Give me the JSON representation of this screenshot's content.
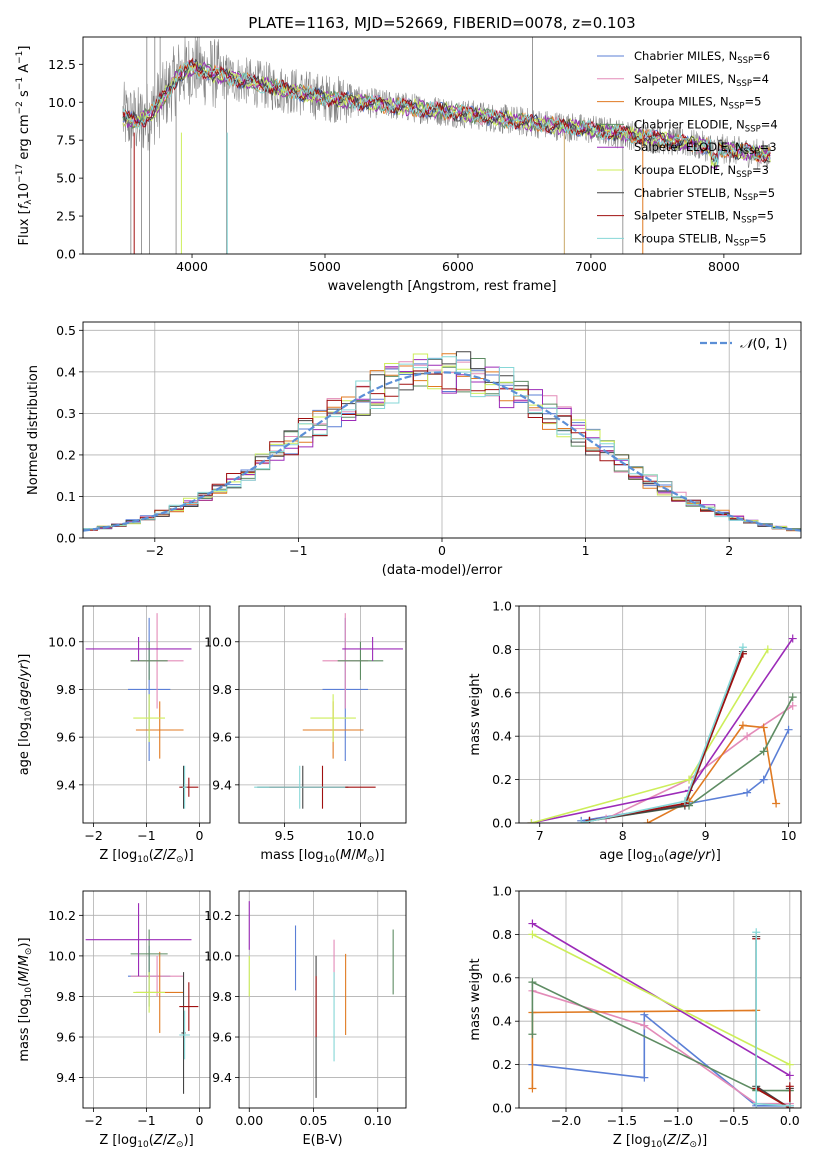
{
  "figure_title": "PLATE=1163, MJD=52669, FIBERID=0078, z=0.103",
  "palette": {
    "Chabrier MILES": "#5b7fd6",
    "Salpeter MILES": "#e38bb8",
    "Kroupa MILES": "#e07a22",
    "Chabrier ELODIE": "#5e8c63",
    "Salpeter ELODIE": "#9c2bb8",
    "Kroupa ELODIE": "#cdee5a",
    "Chabrier STELIB": "#444444",
    "Salpeter STELIB": "#a01010",
    "Kroupa STELIB": "#86d7d7",
    "data": "#808080",
    "gaussian": "#5b8fd6"
  },
  "chart_data": [
    {
      "id": "spectrum",
      "type": "line",
      "title": "PLATE=1163, MJD=52669, FIBERID=0078, z=0.103",
      "xlabel": "wavelength [Angstrom, rest frame]",
      "ylabel": "Flux [f_λ 10^-17 erg cm^-2 s^-1 A^-1]",
      "xlim": [
        3180,
        8580
      ],
      "ylim": [
        0,
        14.3
      ],
      "xticks": [
        4000,
        5000,
        6000,
        7000,
        8000
      ],
      "yticks": [
        0.0,
        2.5,
        5.0,
        7.5,
        10.0,
        12.5
      ],
      "grid": false,
      "legend_position": "top-right",
      "legend": [
        {
          "label": "Chabrier MILES, N_SSP=6",
          "color": "#5b7fd6"
        },
        {
          "label": "Salpeter MILES, N_SSP=4",
          "color": "#e38bb8"
        },
        {
          "label": "Kroupa MILES, N_SSP=5",
          "color": "#e07a22"
        },
        {
          "label": "Chabrier ELODIE, N_SSP=4",
          "color": "#5e8c63"
        },
        {
          "label": "Salpeter ELODIE, N_SSP=3",
          "color": "#9c2bb8"
        },
        {
          "label": "Kroupa ELODIE, N_SSP=3",
          "color": "#cdee5a"
        },
        {
          "label": "Chabrier STELIB, N_SSP=5",
          "color": "#444444"
        },
        {
          "label": "Salpeter STELIB, N_SSP=5",
          "color": "#a01010"
        },
        {
          "label": "Kroupa STELIB, N_SSP=5",
          "color": "#86d7d7"
        }
      ],
      "continuum": {
        "x": [
          3480,
          3600,
          3700,
          3800,
          3900,
          4000,
          4200,
          4500,
          5000,
          5500,
          6000,
          6500,
          7000,
          7500,
          8000,
          8350
        ],
        "y": [
          9.0,
          8.7,
          9.3,
          10.5,
          11.8,
          12.3,
          11.8,
          11.2,
          10.3,
          9.8,
          9.3,
          8.7,
          8.2,
          7.6,
          6.9,
          6.5
        ]
      }
    },
    {
      "id": "residuals",
      "type": "histogram",
      "xlabel": "(data-model)/error",
      "ylabel": "Normed distribution",
      "xlim": [
        -2.5,
        2.5
      ],
      "ylim": [
        0,
        0.52
      ],
      "xticks": [
        -2,
        -1,
        0,
        1,
        2
      ],
      "yticks": [
        0.0,
        0.1,
        0.2,
        0.3,
        0.4,
        0.5
      ],
      "grid": true,
      "legend_position": "top-right",
      "gaussian_label": "N(0,1)",
      "bin_width": 0.1
    },
    {
      "id": "age_vs_Z",
      "type": "errorbar",
      "xlabel": "Z [log10(Z/Z⊙)]",
      "ylabel": "age [log10(age/yr)]",
      "xlim": [
        -2.2,
        0.2
      ],
      "ylim": [
        9.24,
        10.15
      ],
      "xticks": [
        -2,
        -1,
        0
      ],
      "yticks": [
        9.4,
        9.6,
        9.8,
        10.0
      ],
      "grid": true,
      "points": [
        {
          "model": "Chabrier MILES",
          "x": -0.95,
          "xerr": 0.4,
          "y": 9.8,
          "yerr": 0.3
        },
        {
          "model": "Salpeter MILES",
          "x": -0.8,
          "xerr": 0.5,
          "y": 9.92,
          "yerr": 0.2
        },
        {
          "model": "Kroupa MILES",
          "x": -0.75,
          "xerr": 0.45,
          "y": 9.63,
          "yerr": 0.12
        },
        {
          "model": "Chabrier ELODIE",
          "x": -0.95,
          "xerr": 0.35,
          "y": 9.92,
          "yerr": 0.08
        },
        {
          "model": "Salpeter ELODIE",
          "x": -1.15,
          "xerr": 1.0,
          "y": 9.97,
          "yerr": 0.05
        },
        {
          "model": "Kroupa ELODIE",
          "x": -0.95,
          "xerr": 0.3,
          "y": 9.68,
          "yerr": 0.1
        },
        {
          "model": "Chabrier STELIB",
          "x": -0.3,
          "xerr": 0.04,
          "y": 9.39,
          "yerr": 0.09
        },
        {
          "model": "Salpeter STELIB",
          "x": -0.2,
          "xerr": 0.18,
          "y": 9.39,
          "yerr": 0.04
        },
        {
          "model": "Kroupa STELIB",
          "x": -0.28,
          "xerr": 0.04,
          "y": 9.39,
          "yerr": 0.09
        }
      ]
    },
    {
      "id": "age_vs_mass",
      "type": "errorbar",
      "xlabel": "mass [log10(M/M⊙)]",
      "ylabel": "",
      "xlim": [
        9.2,
        10.3
      ],
      "ylim": [
        9.24,
        10.15
      ],
      "xticks": [
        9.5,
        10.0
      ],
      "yticks": [
        9.4,
        9.6,
        9.8,
        10.0
      ],
      "grid": true,
      "points": [
        {
          "model": "Chabrier MILES",
          "x": 9.9,
          "xerr": 0.15,
          "y": 9.8,
          "yerr": 0.3
        },
        {
          "model": "Salpeter MILES",
          "x": 9.9,
          "xerr": 0.15,
          "y": 9.92,
          "yerr": 0.2
        },
        {
          "model": "Kroupa MILES",
          "x": 9.82,
          "xerr": 0.2,
          "y": 9.63,
          "yerr": 0.12
        },
        {
          "model": "Chabrier ELODIE",
          "x": 10.0,
          "xerr": 0.15,
          "y": 9.92,
          "yerr": 0.08
        },
        {
          "model": "Salpeter ELODIE",
          "x": 10.08,
          "xerr": 0.2,
          "y": 9.97,
          "yerr": 0.05
        },
        {
          "model": "Kroupa ELODIE",
          "x": 9.82,
          "xerr": 0.15,
          "y": 9.68,
          "yerr": 0.1
        },
        {
          "model": "Chabrier STELIB",
          "x": 9.62,
          "xerr": 0.3,
          "y": 9.39,
          "yerr": 0.09
        },
        {
          "model": "Salpeter STELIB",
          "x": 9.75,
          "xerr": 0.35,
          "y": 9.39,
          "yerr": 0.09
        },
        {
          "model": "Kroupa STELIB",
          "x": 9.6,
          "xerr": 0.3,
          "y": 9.39,
          "yerr": 0.09
        }
      ]
    },
    {
      "id": "massweight_vs_age",
      "type": "line",
      "xlabel": "age [log10(age/yr)]",
      "ylabel": "mass weight",
      "xlim": [
        6.75,
        10.15
      ],
      "ylim": [
        0,
        1.0
      ],
      "xticks": [
        7,
        8,
        9,
        10
      ],
      "yticks": [
        0.0,
        0.2,
        0.4,
        0.6,
        0.8,
        1.0
      ],
      "grid": true,
      "series": [
        {
          "model": "Chabrier MILES",
          "x": [
            7.5,
            8.8,
            9.5,
            9.7,
            10.0
          ],
          "y": [
            0.01,
            0.09,
            0.14,
            0.2,
            0.43
          ]
        },
        {
          "model": "Salpeter MILES",
          "x": [
            7.8,
            8.8,
            9.5,
            10.05
          ],
          "y": [
            0.02,
            0.2,
            0.4,
            0.54
          ]
        },
        {
          "model": "Kroupa MILES",
          "x": [
            8.3,
            8.8,
            9.45,
            9.7,
            9.85
          ],
          "y": [
            0.0,
            0.1,
            0.45,
            0.44,
            0.09
          ]
        },
        {
          "model": "Chabrier ELODIE",
          "x": [
            7.6,
            8.8,
            9.7,
            10.05
          ],
          "y": [
            0.01,
            0.08,
            0.33,
            0.58
          ]
        },
        {
          "model": "Salpeter ELODIE",
          "x": [
            6.9,
            8.8,
            10.05
          ],
          "y": [
            0.0,
            0.15,
            0.85
          ]
        },
        {
          "model": "Kroupa ELODIE",
          "x": [
            6.9,
            8.8,
            9.75
          ],
          "y": [
            0.0,
            0.2,
            0.8
          ]
        },
        {
          "model": "Chabrier STELIB",
          "x": [
            7.6,
            8.75,
            9.45
          ],
          "y": [
            0.01,
            0.08,
            0.79
          ]
        },
        {
          "model": "Salpeter STELIB",
          "x": [
            7.6,
            8.75,
            9.45
          ],
          "y": [
            0.01,
            0.09,
            0.78
          ]
        },
        {
          "model": "Kroupa STELIB",
          "x": [
            7.5,
            8.75,
            9.45
          ],
          "y": [
            0.0,
            0.1,
            0.81
          ]
        }
      ]
    },
    {
      "id": "mass_vs_Z",
      "type": "errorbar",
      "xlabel": "Z [log10(Z/Z⊙)]",
      "ylabel": "mass [log10(M/M⊙)]",
      "xlim": [
        -2.2,
        0.2
      ],
      "ylim": [
        9.25,
        10.32
      ],
      "xticks": [
        -2,
        -1,
        0
      ],
      "yticks": [
        9.4,
        9.6,
        9.8,
        10.0,
        10.2
      ],
      "grid": true,
      "points": [
        {
          "model": "Chabrier MILES",
          "x": -0.95,
          "xerr": 0.4,
          "y": 9.9,
          "yerr": 0.15
        },
        {
          "model": "Salpeter MILES",
          "x": -0.8,
          "xerr": 0.5,
          "y": 9.9,
          "yerr": 0.1
        },
        {
          "model": "Kroupa MILES",
          "x": -0.75,
          "xerr": 0.45,
          "y": 9.82,
          "yerr": 0.2
        },
        {
          "model": "Chabrier ELODIE",
          "x": -0.95,
          "xerr": 0.35,
          "y": 10.01,
          "yerr": 0.12
        },
        {
          "model": "Salpeter ELODIE",
          "x": -1.15,
          "xerr": 1.0,
          "y": 10.08,
          "yerr": 0.18
        },
        {
          "model": "Kroupa ELODIE",
          "x": -0.95,
          "xerr": 0.3,
          "y": 9.82,
          "yerr": 0.1
        },
        {
          "model": "Chabrier STELIB",
          "x": -0.3,
          "xerr": 0.04,
          "y": 9.62,
          "yerr": 0.3
        },
        {
          "model": "Salpeter STELIB",
          "x": -0.2,
          "xerr": 0.18,
          "y": 9.75,
          "yerr": 0.12
        },
        {
          "model": "Kroupa STELIB",
          "x": -0.28,
          "xerr": 0.1,
          "y": 9.61,
          "yerr": 0.12
        }
      ]
    },
    {
      "id": "mass_vs_ebv",
      "type": "errorbar",
      "xlabel": "E(B-V)",
      "ylabel": "",
      "xlim": [
        -0.008,
        0.122
      ],
      "ylim": [
        9.25,
        10.32
      ],
      "xticks": [
        0.0,
        0.05,
        0.1
      ],
      "xticklabels": [
        "0.00",
        "0.05",
        "0.10"
      ],
      "yticks": [
        9.4,
        9.6,
        9.8,
        10.0,
        10.2
      ],
      "grid": true,
      "points": [
        {
          "model": "Chabrier MILES",
          "x": 0.036,
          "xerr": 0,
          "y": 9.99,
          "yerr": 0.16
        },
        {
          "model": "Salpeter MILES",
          "x": 0.066,
          "xerr": 0,
          "y": 9.94,
          "yerr": 0.14
        },
        {
          "model": "Kroupa MILES",
          "x": 0.075,
          "xerr": 0,
          "y": 9.81,
          "yerr": 0.2
        },
        {
          "model": "Chabrier ELODIE",
          "x": 0.112,
          "xerr": 0,
          "y": 9.97,
          "yerr": 0.16
        },
        {
          "model": "Salpeter ELODIE",
          "x": 0.0,
          "xerr": 0,
          "y": 10.15,
          "yerr": 0.12
        },
        {
          "model": "Kroupa ELODIE",
          "x": 0.0,
          "xerr": 0,
          "y": 9.9,
          "yerr": 0.1
        },
        {
          "model": "Chabrier STELIB",
          "x": 0.052,
          "xerr": 0,
          "y": 9.65,
          "yerr": 0.35
        },
        {
          "model": "Salpeter STELIB",
          "x": 0.052,
          "xerr": 0,
          "y": 9.75,
          "yerr": 0.15
        },
        {
          "model": "Kroupa STELIB",
          "x": 0.066,
          "xerr": 0,
          "y": 9.7,
          "yerr": 0.22
        }
      ]
    },
    {
      "id": "massweight_vs_Z",
      "type": "line",
      "xlabel": "Z [log10(Z/Z⊙)]",
      "ylabel": "mass weight",
      "xlim": [
        -2.42,
        0.1
      ],
      "ylim": [
        0,
        1.0
      ],
      "xticks": [
        -2.0,
        -1.5,
        -1.0,
        -0.5,
        0.0
      ],
      "yticks": [
        0.0,
        0.2,
        0.4,
        0.6,
        0.8,
        1.0
      ],
      "grid": true,
      "series": [
        {
          "model": "Chabrier MILES",
          "x": [
            -2.3,
            -1.3,
            -1.3,
            -0.3,
            0.0
          ],
          "y": [
            0.2,
            0.14,
            0.43,
            0.01,
            0.01
          ]
        },
        {
          "model": "Salpeter MILES",
          "x": [
            -2.3,
            -1.3,
            -0.3,
            0.0
          ],
          "y": [
            0.54,
            0.38,
            0.02,
            0.02
          ]
        },
        {
          "model": "Kroupa MILES",
          "x": [
            -2.3,
            -2.3,
            -0.3,
            -0.3,
            0.0
          ],
          "y": [
            0.09,
            0.44,
            0.45,
            0.09,
            0.0
          ]
        },
        {
          "model": "Chabrier ELODIE",
          "x": [
            -2.3,
            -2.3,
            -0.3,
            0.0
          ],
          "y": [
            0.34,
            0.58,
            0.08,
            0.08
          ]
        },
        {
          "model": "Salpeter ELODIE",
          "x": [
            -2.3,
            0.0
          ],
          "y": [
            0.85,
            0.15
          ]
        },
        {
          "model": "Kroupa ELODIE",
          "x": [
            -2.3,
            0.0
          ],
          "y": [
            0.8,
            0.2
          ]
        },
        {
          "model": "Chabrier STELIB",
          "x": [
            -0.3,
            -0.3,
            0.0,
            0.0
          ],
          "y": [
            0.79,
            0.1,
            0.0,
            0.09
          ]
        },
        {
          "model": "Salpeter STELIB",
          "x": [
            -0.3,
            -0.3,
            0.0,
            0.0
          ],
          "y": [
            0.78,
            0.09,
            0.0,
            0.1
          ]
        },
        {
          "model": "Kroupa STELIB",
          "x": [
            -0.3,
            -0.3,
            0.0
          ],
          "y": [
            0.81,
            0.02,
            0.01
          ]
        }
      ]
    }
  ]
}
